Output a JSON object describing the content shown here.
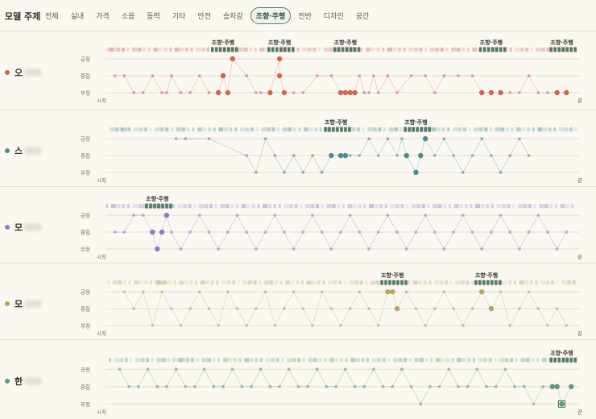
{
  "header": {
    "title": "모델 주제",
    "tabs": [
      {
        "label": "전체",
        "active": false
      },
      {
        "label": "실내",
        "active": false
      },
      {
        "label": "가격",
        "active": false
      },
      {
        "label": "소음",
        "active": false
      },
      {
        "label": "동력",
        "active": false
      },
      {
        "label": "기타",
        "active": false
      },
      {
        "label": "안전",
        "active": false
      },
      {
        "label": "승차감",
        "active": false
      },
      {
        "label": "조향·주행",
        "active": true
      },
      {
        "label": "전반",
        "active": false
      },
      {
        "label": "디자인",
        "active": false
      },
      {
        "label": "공간",
        "active": false
      }
    ]
  },
  "chart_common": {
    "levels": [
      "긍정",
      "중립",
      "부정"
    ],
    "start_label": "시작",
    "end_label": "끝",
    "highlight_label": "조향·주행"
  },
  "chart_data": [
    {
      "type": "scatter",
      "model": "오",
      "color": "#d4654c",
      "x_range": [
        0,
        100
      ],
      "y_levels": [
        "긍정",
        "중립",
        "부정"
      ],
      "highlights": [
        25,
        37,
        51,
        82,
        97
      ],
      "points": [
        [
          2,
          1
        ],
        [
          4,
          1
        ],
        [
          6,
          2
        ],
        [
          8,
          2
        ],
        [
          10,
          1
        ],
        [
          12,
          2
        ],
        [
          13,
          2
        ],
        [
          14,
          1
        ],
        [
          16,
          2
        ],
        [
          18,
          2
        ],
        [
          20,
          1
        ],
        [
          22,
          2
        ],
        [
          24,
          2
        ],
        [
          25,
          1
        ],
        [
          26,
          2
        ],
        [
          27,
          0
        ],
        [
          30,
          1
        ],
        [
          32,
          2
        ],
        [
          33,
          2
        ],
        [
          35,
          2
        ],
        [
          37,
          0
        ],
        [
          37,
          1
        ],
        [
          38,
          2
        ],
        [
          40,
          2
        ],
        [
          42,
          2
        ],
        [
          45,
          1
        ],
        [
          48,
          1
        ],
        [
          50,
          2
        ],
        [
          51,
          2
        ],
        [
          52,
          2
        ],
        [
          53,
          2
        ],
        [
          54,
          1
        ],
        [
          55,
          2
        ],
        [
          56,
          2
        ],
        [
          57,
          1
        ],
        [
          58,
          2
        ],
        [
          60,
          1
        ],
        [
          62,
          2
        ],
        [
          65,
          1
        ],
        [
          68,
          1
        ],
        [
          70,
          2
        ],
        [
          72,
          1
        ],
        [
          75,
          1
        ],
        [
          78,
          1
        ],
        [
          80,
          2
        ],
        [
          82,
          2
        ],
        [
          84,
          2
        ],
        [
          86,
          2
        ],
        [
          88,
          2
        ],
        [
          90,
          1
        ],
        [
          92,
          2
        ],
        [
          94,
          2
        ],
        [
          96,
          2
        ],
        [
          98,
          2
        ]
      ]
    },
    {
      "type": "scatter",
      "model": "스",
      "color": "#4a8a93",
      "x_range": [
        0,
        100
      ],
      "y_levels": [
        "긍정",
        "중립",
        "부정"
      ],
      "highlights": [
        49,
        66
      ],
      "points": [
        [
          15,
          0
        ],
        [
          17,
          0
        ],
        [
          22,
          0
        ],
        [
          30,
          1
        ],
        [
          32,
          2
        ],
        [
          34,
          0
        ],
        [
          36,
          1
        ],
        [
          38,
          2
        ],
        [
          40,
          1
        ],
        [
          42,
          2
        ],
        [
          44,
          1
        ],
        [
          46,
          2
        ],
        [
          48,
          1
        ],
        [
          50,
          1
        ],
        [
          51,
          1
        ],
        [
          52,
          1
        ],
        [
          54,
          1
        ],
        [
          56,
          0
        ],
        [
          58,
          1
        ],
        [
          60,
          0
        ],
        [
          62,
          1
        ],
        [
          63,
          0
        ],
        [
          64,
          1
        ],
        [
          66,
          2
        ],
        [
          67,
          1
        ],
        [
          68,
          0
        ],
        [
          70,
          1
        ],
        [
          72,
          0
        ],
        [
          74,
          1
        ],
        [
          76,
          2
        ],
        [
          78,
          1
        ],
        [
          80,
          0
        ],
        [
          82,
          1
        ],
        [
          84,
          2
        ],
        [
          86,
          1
        ],
        [
          88,
          0
        ],
        [
          90,
          1
        ]
      ]
    },
    {
      "type": "scatter",
      "model": "모",
      "color": "#8d7cc0",
      "x_range": [
        0,
        100
      ],
      "y_levels": [
        "긍정",
        "중립",
        "부정"
      ],
      "highlights": [
        11
      ],
      "points": [
        [
          2,
          1
        ],
        [
          4,
          1
        ],
        [
          6,
          0
        ],
        [
          8,
          0
        ],
        [
          10,
          1
        ],
        [
          11,
          2
        ],
        [
          12,
          1
        ],
        [
          13,
          0
        ],
        [
          14,
          1
        ],
        [
          16,
          2
        ],
        [
          18,
          1
        ],
        [
          20,
          0
        ],
        [
          22,
          1
        ],
        [
          24,
          2
        ],
        [
          26,
          1
        ],
        [
          28,
          0
        ],
        [
          30,
          1
        ],
        [
          32,
          2
        ],
        [
          34,
          1
        ],
        [
          36,
          0
        ],
        [
          38,
          1
        ],
        [
          40,
          2
        ],
        [
          42,
          1
        ],
        [
          44,
          0
        ],
        [
          46,
          1
        ],
        [
          48,
          2
        ],
        [
          50,
          1
        ],
        [
          52,
          0
        ],
        [
          54,
          1
        ],
        [
          56,
          2
        ],
        [
          58,
          1
        ],
        [
          60,
          0
        ],
        [
          62,
          1
        ],
        [
          64,
          2
        ],
        [
          66,
          1
        ],
        [
          68,
          0
        ],
        [
          70,
          1
        ],
        [
          72,
          2
        ],
        [
          74,
          1
        ],
        [
          76,
          0
        ],
        [
          78,
          1
        ],
        [
          80,
          2
        ],
        [
          82,
          1
        ],
        [
          84,
          0
        ],
        [
          86,
          1
        ],
        [
          88,
          2
        ],
        [
          90,
          1
        ],
        [
          92,
          0
        ],
        [
          94,
          1
        ],
        [
          96,
          2
        ],
        [
          98,
          1
        ]
      ]
    },
    {
      "type": "scatter",
      "model": "모",
      "color": "#b8a45a",
      "x_range": [
        0,
        100
      ],
      "y_levels": [
        "긍정",
        "중립",
        "부정"
      ],
      "highlights": [
        61,
        81
      ],
      "points": [
        [
          4,
          0
        ],
        [
          6,
          1
        ],
        [
          8,
          0
        ],
        [
          10,
          2
        ],
        [
          12,
          0
        ],
        [
          14,
          1
        ],
        [
          16,
          2
        ],
        [
          18,
          1
        ],
        [
          20,
          0
        ],
        [
          22,
          1
        ],
        [
          24,
          2
        ],
        [
          26,
          0
        ],
        [
          28,
          1
        ],
        [
          30,
          2
        ],
        [
          32,
          1
        ],
        [
          34,
          0
        ],
        [
          36,
          2
        ],
        [
          38,
          1
        ],
        [
          40,
          0
        ],
        [
          42,
          1
        ],
        [
          44,
          2
        ],
        [
          46,
          0
        ],
        [
          48,
          1
        ],
        [
          50,
          2
        ],
        [
          52,
          1
        ],
        [
          54,
          0
        ],
        [
          56,
          1
        ],
        [
          58,
          2
        ],
        [
          60,
          0
        ],
        [
          61,
          0
        ],
        [
          62,
          1
        ],
        [
          64,
          0
        ],
        [
          66,
          1
        ],
        [
          68,
          2
        ],
        [
          70,
          1
        ],
        [
          72,
          0
        ],
        [
          74,
          1
        ],
        [
          76,
          2
        ],
        [
          78,
          1
        ],
        [
          80,
          0
        ],
        [
          82,
          1
        ],
        [
          84,
          0
        ],
        [
          86,
          2
        ],
        [
          88,
          1
        ],
        [
          90,
          0
        ],
        [
          92,
          1
        ],
        [
          94,
          2
        ],
        [
          96,
          1
        ],
        [
          98,
          2
        ]
      ]
    },
    {
      "type": "scatter",
      "model": "한",
      "color": "#5a9b78",
      "x_range": [
        0,
        100
      ],
      "y_levels": [
        "긍정",
        "중립",
        "부정"
      ],
      "highlights": [
        97
      ],
      "points": [
        [
          3,
          0
        ],
        [
          5,
          1
        ],
        [
          7,
          1
        ],
        [
          9,
          0
        ],
        [
          11,
          1
        ],
        [
          13,
          1
        ],
        [
          15,
          0
        ],
        [
          17,
          1
        ],
        [
          19,
          1
        ],
        [
          21,
          0
        ],
        [
          23,
          1
        ],
        [
          25,
          1
        ],
        [
          27,
          0
        ],
        [
          29,
          1
        ],
        [
          31,
          1
        ],
        [
          33,
          0
        ],
        [
          35,
          1
        ],
        [
          37,
          1
        ],
        [
          39,
          0
        ],
        [
          41,
          1
        ],
        [
          43,
          1
        ],
        [
          45,
          0
        ],
        [
          47,
          1
        ],
        [
          49,
          1
        ],
        [
          51,
          0
        ],
        [
          53,
          1
        ],
        [
          55,
          1
        ],
        [
          57,
          0
        ],
        [
          59,
          1
        ],
        [
          61,
          1
        ],
        [
          63,
          0
        ],
        [
          65,
          1
        ],
        [
          67,
          2
        ],
        [
          69,
          1
        ],
        [
          71,
          1
        ],
        [
          73,
          0
        ],
        [
          75,
          1
        ],
        [
          77,
          1
        ],
        [
          79,
          0
        ],
        [
          81,
          1
        ],
        [
          83,
          1
        ],
        [
          85,
          0
        ],
        [
          87,
          1
        ],
        [
          89,
          1
        ],
        [
          91,
          2
        ],
        [
          93,
          1
        ],
        [
          95,
          1
        ],
        [
          96,
          1
        ],
        [
          97,
          2
        ],
        [
          99,
          1
        ]
      ]
    }
  ]
}
